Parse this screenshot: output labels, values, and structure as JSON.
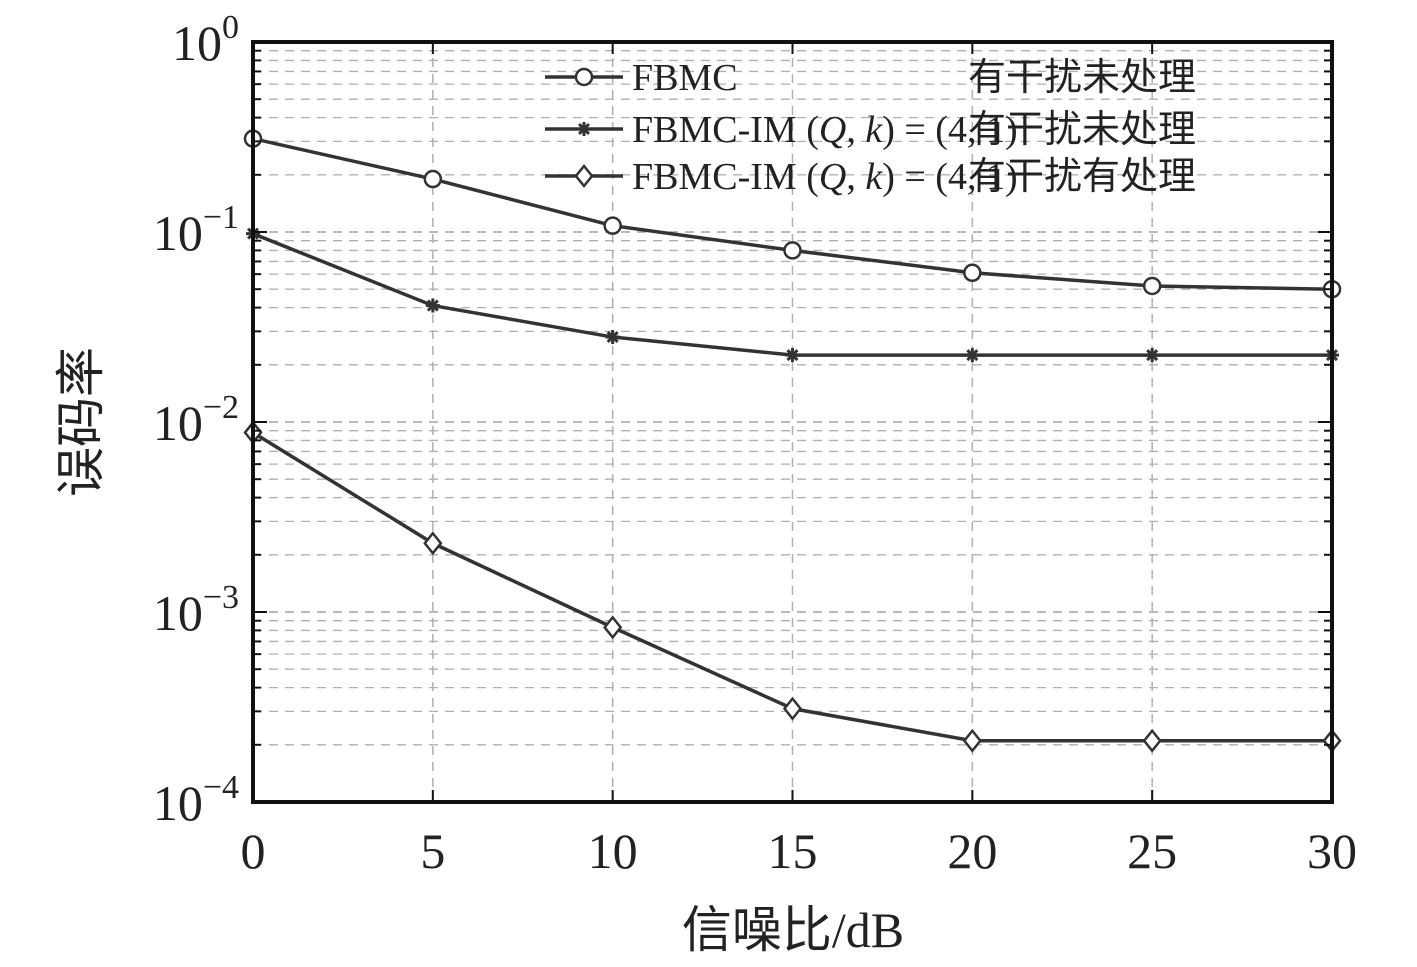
{
  "chart_data": {
    "type": "line",
    "title": "",
    "xlabel": "信噪比/dB",
    "ylabel": "误码率",
    "xlim": [
      0,
      30
    ],
    "ylim": [
      0.0001,
      1
    ],
    "yscale": "log",
    "grid": true,
    "legend_position": "top-right",
    "xticks": [
      0,
      5,
      10,
      15,
      20,
      25,
      30
    ],
    "xtick_labels": [
      "0",
      "5",
      "10",
      "15",
      "20",
      "25",
      "30"
    ],
    "yticks": [
      {
        "value": 1,
        "base": "10",
        "exp": "0"
      },
      {
        "value": 0.1,
        "base": "10",
        "exp": "−1"
      },
      {
        "value": 0.01,
        "base": "10",
        "exp": "−2"
      },
      {
        "value": 0.001,
        "base": "10",
        "exp": "−3"
      },
      {
        "value": 0.0001,
        "base": "10",
        "exp": "−4"
      }
    ],
    "x": [
      0,
      5,
      10,
      15,
      20,
      25,
      30
    ],
    "series": [
      {
        "name": "FBMC 有干扰未处理",
        "legend_parts": {
          "a": "FBMC",
          "b": "",
          "c": "",
          "d": "",
          "e": "",
          "f": "有干扰未处理"
        },
        "marker": "circle",
        "values": [
          0.31,
          0.19,
          0.108,
          0.08,
          0.061,
          0.052,
          0.05
        ]
      },
      {
        "name": "FBMC-IM (Q, k) = (4, 1) 有干扰未处理",
        "legend_parts": {
          "a": "FBMC-IM (",
          "b": "Q",
          "c": ", ",
          "d": "k",
          "e": ") = (4, 1)",
          "f": "有干扰未处理"
        },
        "marker": "star",
        "values": [
          0.098,
          0.041,
          0.028,
          0.0225,
          0.0225,
          0.0225,
          0.0225
        ]
      },
      {
        "name": "FBMC-IM (Q, k) = (4, 1) 有干扰有处理",
        "legend_parts": {
          "a": "FBMC-IM (",
          "b": "Q",
          "c": ", ",
          "d": "k",
          "e": ") = (4, 1)",
          "f": "有干扰有处理"
        },
        "marker": "diamond",
        "values": [
          0.0088,
          0.0023,
          0.00083,
          0.00031,
          0.00021,
          0.00021,
          0.00021
        ]
      }
    ]
  },
  "colors": {
    "line": "#333333",
    "grid": "#b0b0b0",
    "axis": "#111111"
  }
}
